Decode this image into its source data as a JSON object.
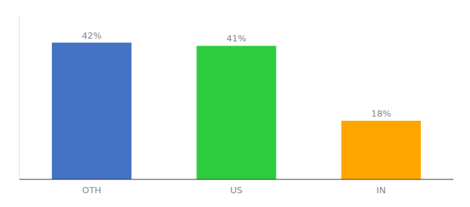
{
  "chart_data": {
    "type": "bar",
    "categories": [
      "OTH",
      "US",
      "IN"
    ],
    "values": [
      42,
      41,
      18
    ],
    "value_labels": [
      "42%",
      "41%",
      "18%"
    ],
    "colors": [
      "#4472C4",
      "#2ECC40",
      "#FFA500"
    ],
    "ylim": [
      0,
      50
    ],
    "data_labels": true,
    "tick_labels": "x",
    "grid": false
  }
}
